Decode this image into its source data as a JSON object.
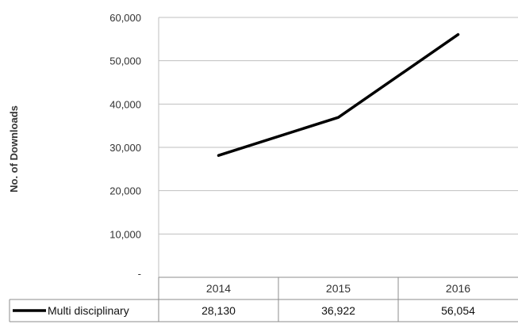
{
  "chart_data": {
    "type": "line",
    "title": "",
    "xlabel": "",
    "ylabel": "No. of Downloads",
    "categories": [
      "2014",
      "2015",
      "2016"
    ],
    "y_tick_labels": [
      "-",
      "10,000",
      "20,000",
      "30,000",
      "40,000",
      "50,000",
      "60,000"
    ],
    "y_tick_values": [
      0,
      10000,
      20000,
      30000,
      40000,
      50000,
      60000
    ],
    "ylim": [
      0,
      60000
    ],
    "grid": true,
    "legend": "data-table-below",
    "series": [
      {
        "name": "Multi disciplinary",
        "values": [
          28130,
          36922,
          56054
        ],
        "value_labels": [
          "28,130",
          "36,922",
          "56,054"
        ],
        "color": "#000000"
      }
    ]
  }
}
